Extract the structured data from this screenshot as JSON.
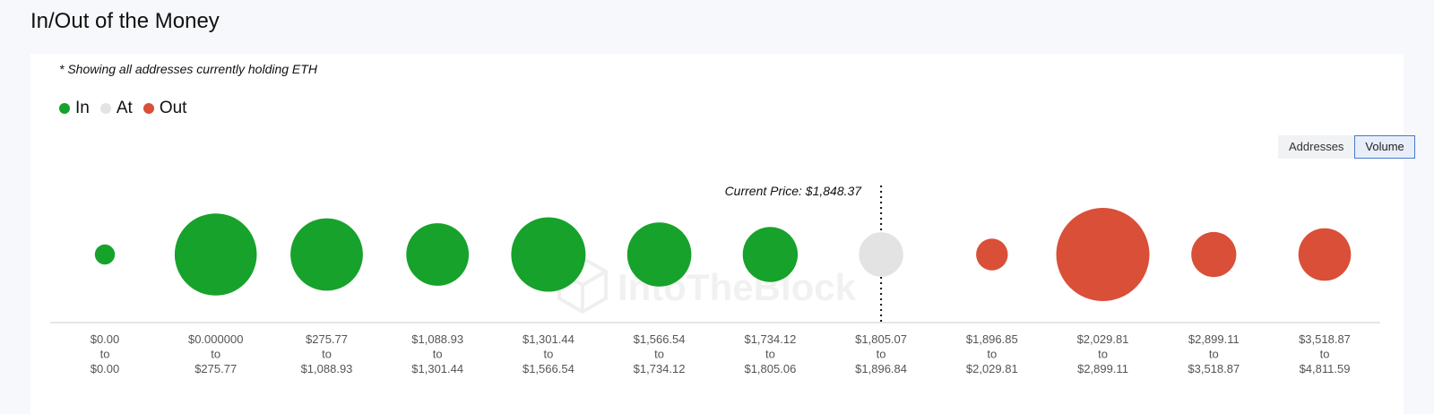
{
  "page": {
    "title": "In/Out of the Money"
  },
  "note": "* Showing all addresses currently holding ETH",
  "watermark": "IntoTheBlock",
  "colors": {
    "in": "#17a22b",
    "at": "#e3e3e3",
    "out": "#d94f38"
  },
  "toggle": {
    "addresses_label": "Addresses",
    "volume_label": "Volume",
    "selected": "Volume"
  },
  "chart_data": {
    "type": "bubble",
    "legend": [
      {
        "key": "in",
        "label": "In"
      },
      {
        "key": "at",
        "label": "At"
      },
      {
        "key": "out",
        "label": "Out"
      }
    ],
    "current_price_label": "Current Price: $1,848.37",
    "current_price_bucket_index": 7,
    "buckets": [
      {
        "from": "$0.00",
        "to": "$0.00",
        "status": "in",
        "size": 6
      },
      {
        "from": "$0.000000",
        "to": "$275.77",
        "status": "in",
        "size": 100
      },
      {
        "from": "$275.77",
        "to": "$1,088.93",
        "status": "in",
        "size": 78
      },
      {
        "from": "$1,088.93",
        "to": "$1,301.44",
        "status": "in",
        "size": 58
      },
      {
        "from": "$1,301.44",
        "to": "$1,566.54",
        "status": "in",
        "size": 82
      },
      {
        "from": "$1,566.54",
        "to": "$1,734.12",
        "status": "in",
        "size": 61
      },
      {
        "from": "$1,734.12",
        "to": "$1,805.06",
        "status": "in",
        "size": 45
      },
      {
        "from": "$1,805.07",
        "to": "$1,896.84",
        "status": "at",
        "size": 29
      },
      {
        "from": "$1,896.85",
        "to": "$2,029.81",
        "status": "out",
        "size": 15
      },
      {
        "from": "$2,029.81",
        "to": "$2,899.11",
        "status": "out",
        "size": 129
      },
      {
        "from": "$2,899.11",
        "to": "$3,518.87",
        "status": "out",
        "size": 30
      },
      {
        "from": "$3,518.87",
        "to": "$4,811.59",
        "status": "out",
        "size": 41
      }
    ],
    "tick_connector": "to"
  }
}
